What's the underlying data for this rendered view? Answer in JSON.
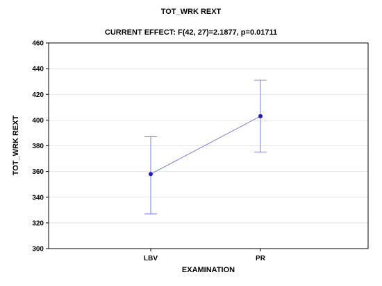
{
  "chart_data": {
    "type": "line",
    "title": "TOT_WRK REXT",
    "subtitle": "CURRENT EFFECT: F(42, 27)=2.1877, p=0.01711",
    "xlabel": "EXAMINATION",
    "ylabel": "TOT_WRK REXT",
    "categories": [
      "LBV",
      "PR"
    ],
    "series": [
      {
        "values": [
          358,
          403
        ],
        "error_low": [
          327,
          375
        ],
        "error_high": [
          387,
          431
        ]
      }
    ],
    "ylim": [
      300,
      460
    ],
    "yticks": [
      300,
      320,
      340,
      360,
      380,
      400,
      420,
      440,
      460
    ],
    "grid": true,
    "series_color": "#1a1ad6",
    "line_color": "#7b7bf0",
    "error_bar_color": "#7b7bf0"
  }
}
